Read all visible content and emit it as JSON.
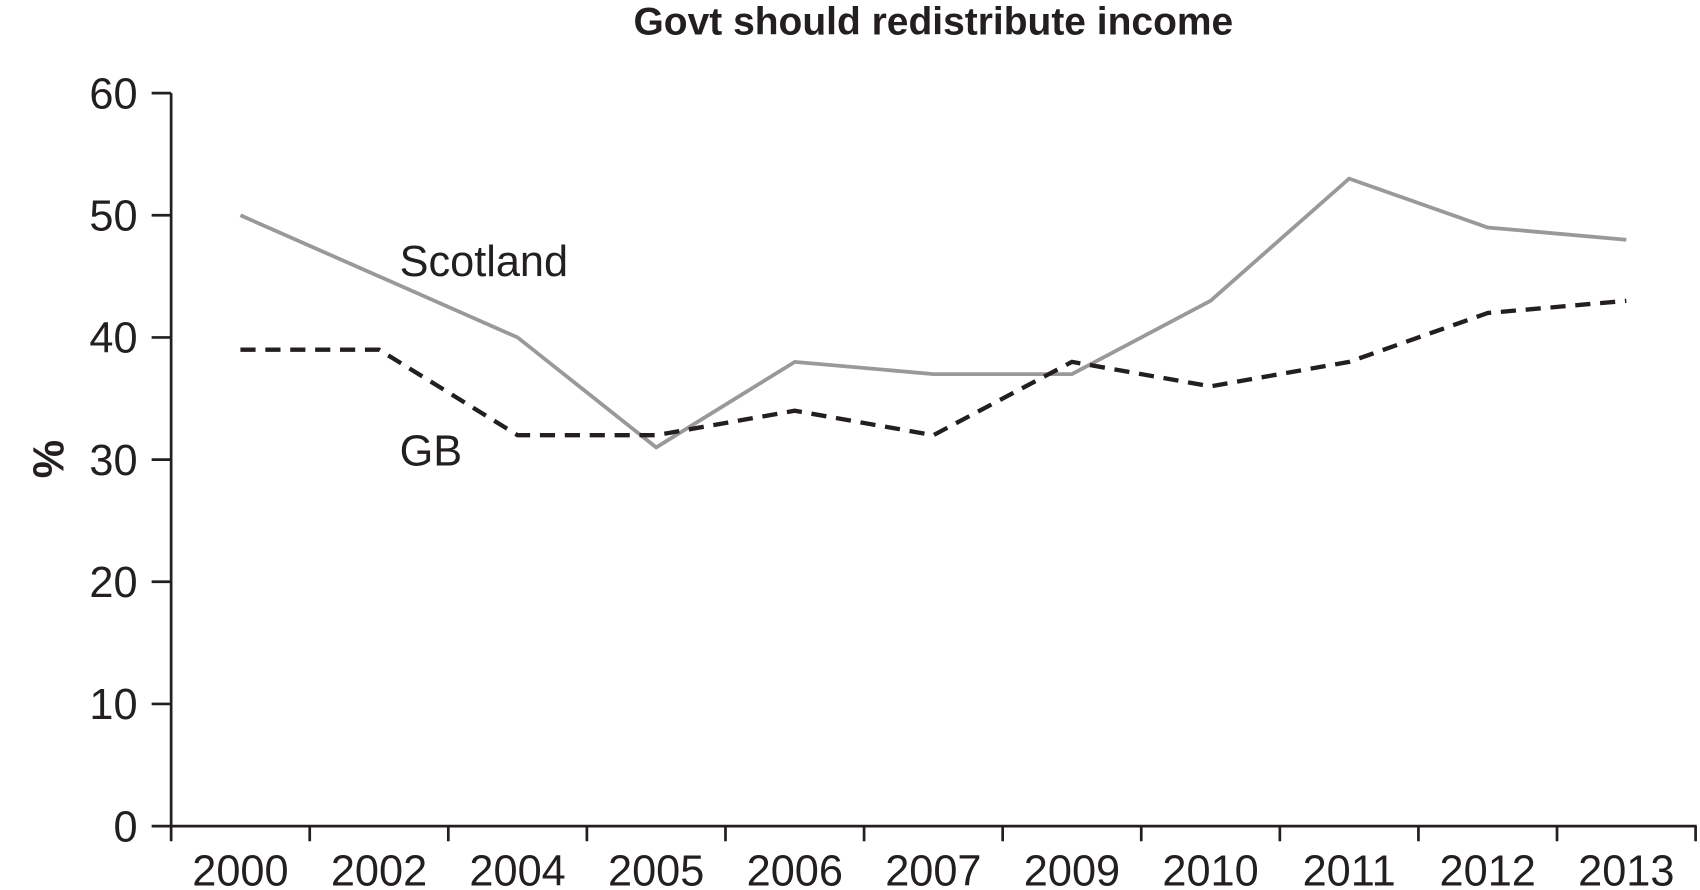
{
  "chart_data": {
    "type": "line",
    "title": "Govt should redistribute income",
    "xlabel": "",
    "ylabel": "%",
    "categories": [
      "2000",
      "2002",
      "2004",
      "2005",
      "2006",
      "2007",
      "2009",
      "2010",
      "2011",
      "2012",
      "2013"
    ],
    "ylim": [
      0,
      60
    ],
    "yticks": [
      0,
      10,
      20,
      30,
      40,
      50,
      60
    ],
    "grid": false,
    "legend": "inline labels",
    "series": [
      {
        "name": "Scotland",
        "values": [
          50,
          45,
          40,
          31,
          38,
          37,
          37,
          43,
          53,
          49,
          48
        ],
        "color": "#999999",
        "style": "solid"
      },
      {
        "name": "GB",
        "values": [
          39,
          39,
          32,
          32,
          34,
          32,
          38,
          36,
          38,
          42,
          43
        ],
        "color": "#231f20",
        "style": "dashed"
      }
    ]
  }
}
